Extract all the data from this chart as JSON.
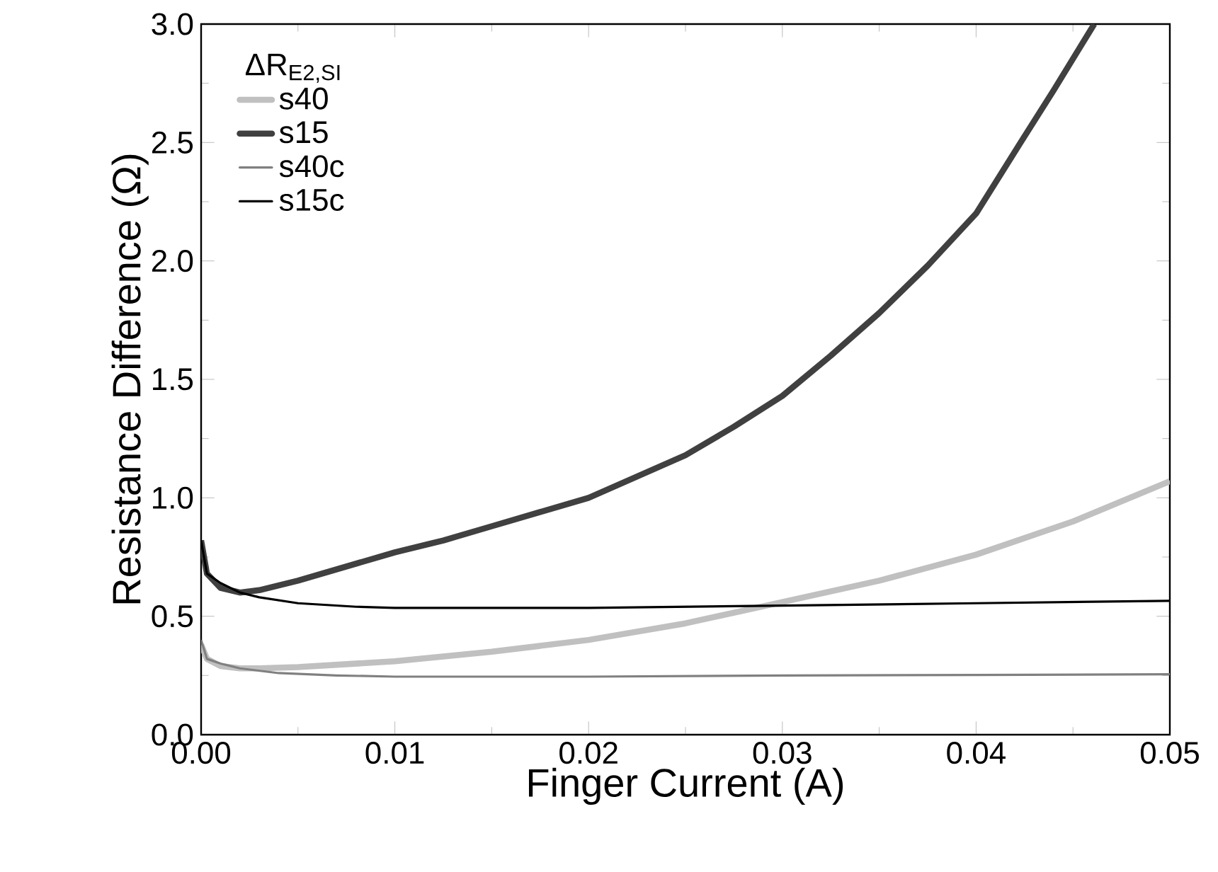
{
  "chart_data": {
    "type": "line",
    "xlabel": "Finger Current (A)",
    "ylabel": "Resistance Difference (Ω)",
    "legend_title": "ΔR$_{E2,SI}$",
    "xlim": [
      0,
      0.05
    ],
    "ylim": [
      0,
      3.0
    ],
    "xticks": [
      {
        "value": 0,
        "label": "0.00"
      },
      0.01,
      0.02,
      0.03,
      0.04,
      {
        "value": 0.05,
        "label": "0.05"
      }
    ],
    "yticks": [
      {
        "value": 0,
        "label": "0.0"
      },
      0.5,
      {
        "value": 1,
        "label": "1.0"
      },
      1.5,
      {
        "value": 2,
        "label": "2.0"
      },
      2.5,
      {
        "value": 3,
        "label": "3.0"
      }
    ],
    "grid": false,
    "legend": "top left",
    "marker": "none",
    "line_style": "solid",
    "series": [
      {
        "name": "s40",
        "color": "#c0c0c0",
        "x": [
          0,
          0.0003,
          0.001,
          0.002,
          0.003,
          0.005,
          0.01,
          0.015,
          0.02,
          0.025,
          0.03,
          0.035,
          0.04,
          0.045,
          0.05
        ],
        "values": [
          0.38,
          0.32,
          0.29,
          0.28,
          0.28,
          0.285,
          0.31,
          0.35,
          0.4,
          0.47,
          0.56,
          0.65,
          0.76,
          0.9,
          1.07
        ]
      },
      {
        "name": "s15",
        "color": "#404040",
        "x": [
          0,
          0.0003,
          0.001,
          0.002,
          0.003,
          0.005,
          0.0075,
          0.01,
          0.0125,
          0.015,
          0.0175,
          0.02,
          0.0225,
          0.025,
          0.0275,
          0.03,
          0.0325,
          0.035,
          0.0375,
          0.04,
          0.0423,
          0.044,
          0.0461
        ],
        "values": [
          0.82,
          0.68,
          0.62,
          0.6,
          0.61,
          0.65,
          0.71,
          0.77,
          0.82,
          0.88,
          0.94,
          1.0,
          1.09,
          1.18,
          1.3,
          1.43,
          1.6,
          1.78,
          1.98,
          2.2,
          2.5,
          2.72,
          3.0
        ]
      },
      {
        "name": "s40c",
        "color": "#808080",
        "x": [
          0,
          0.0003,
          0.001,
          0.002,
          0.004,
          0.007,
          0.01,
          0.02,
          0.03,
          0.04,
          0.05
        ],
        "values": [
          0.4,
          0.32,
          0.3,
          0.28,
          0.26,
          0.25,
          0.245,
          0.245,
          0.25,
          0.252,
          0.255
        ]
      },
      {
        "name": "s15c",
        "color": "#000000",
        "x": [
          0,
          0.0003,
          0.001,
          0.002,
          0.003,
          0.005,
          0.008,
          0.01,
          0.02,
          0.03,
          0.04,
          0.05
        ],
        "values": [
          0.82,
          0.68,
          0.64,
          0.6,
          0.58,
          0.555,
          0.54,
          0.535,
          0.535,
          0.545,
          0.555,
          0.565
        ]
      }
    ]
  }
}
